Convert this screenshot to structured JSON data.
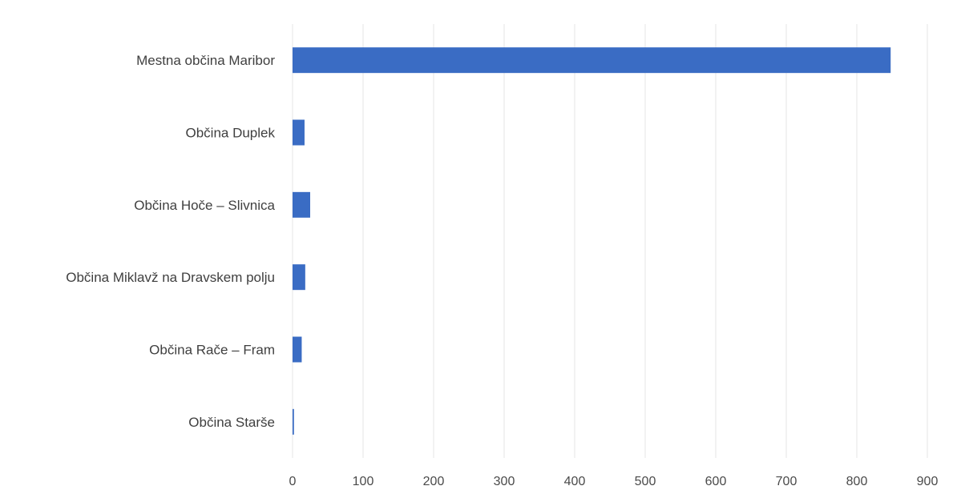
{
  "chart_data": {
    "type": "bar",
    "orientation": "horizontal",
    "title": "",
    "xlabel": "",
    "ylabel": "",
    "categories": [
      "Mestna občina Maribor",
      "Občina Duplek",
      "Občina Hoče – Slivnica",
      "Občina Miklavž na Dravskem polju",
      "Občina Rače – Fram",
      "Občina Starše"
    ],
    "values": [
      848,
      17,
      25,
      18,
      13,
      2
    ],
    "xlim": [
      0,
      900
    ],
    "x_ticks": [
      0,
      100,
      200,
      300,
      400,
      500,
      600,
      700,
      800,
      900
    ],
    "grid": true,
    "legend": "none",
    "colors": {
      "bar": "#3a6cc4",
      "grid": "#e6e6e6",
      "text": "#3f3f3f"
    }
  }
}
